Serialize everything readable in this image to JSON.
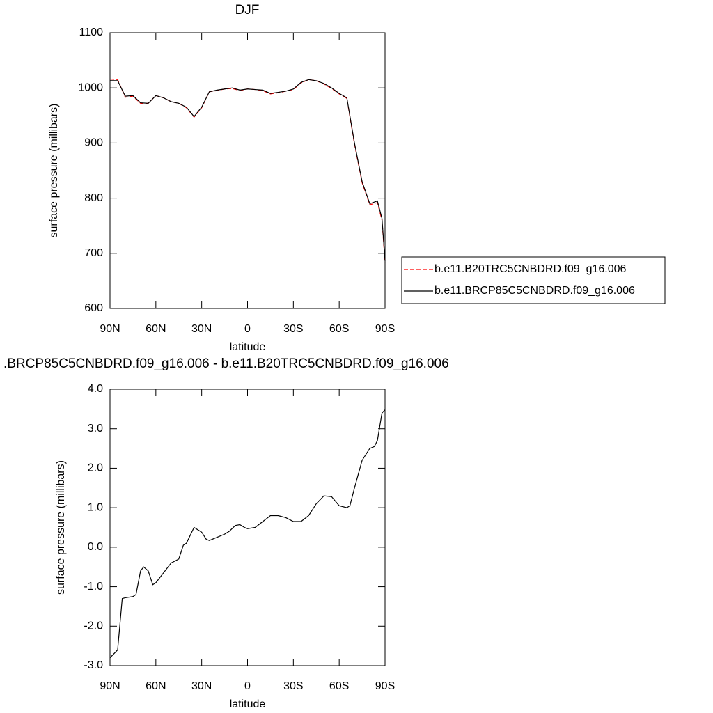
{
  "chart_data": [
    {
      "type": "line",
      "title": "DJF",
      "xlabel": "latitude",
      "ylabel": "surface pressure (millibars)",
      "x": [
        90,
        85,
        80,
        75,
        70,
        65,
        60,
        55,
        50,
        45,
        40,
        35,
        30,
        25,
        20,
        15,
        10,
        5,
        0,
        -5,
        -10,
        -15,
        -20,
        -25,
        -30,
        -35,
        -40,
        -45,
        -50,
        -55,
        -60,
        -65,
        -70,
        -75,
        -80,
        -85,
        -88,
        -90
      ],
      "series": [
        {
          "name": "b.e11.B20TRC5CNBDRD.f09_g16.006",
          "color": "#ff0000",
          "dash": true,
          "values": [
            1016,
            1015,
            983,
            985,
            972,
            972,
            986,
            982,
            975,
            972,
            964,
            947,
            964,
            993,
            995,
            998,
            999,
            995,
            998,
            997,
            995,
            989,
            991,
            994,
            997,
            1009,
            1015,
            1013,
            1007,
            999,
            989,
            981,
            898,
            828,
            788,
            792,
            760,
            683
          ]
        },
        {
          "name": "b.e11.BRCP85C5CNBDRD.f09_g16.006",
          "color": "#000000",
          "dash": false,
          "values": [
            1013,
            1013,
            985,
            986,
            973,
            972,
            986,
            982,
            975,
            972,
            965,
            948,
            965,
            993,
            996,
            998,
            1000,
            996,
            998,
            997,
            996,
            990,
            992,
            994,
            998,
            1010,
            1015,
            1013,
            1008,
            1000,
            990,
            982,
            900,
            830,
            790,
            795,
            763,
            686
          ]
        }
      ],
      "xlim": [
        90,
        -90
      ],
      "xticks": [
        {
          "value": 90,
          "label": "90N"
        },
        {
          "value": 60,
          "label": "60N"
        },
        {
          "value": 30,
          "label": "30N"
        },
        0,
        {
          "value": -30,
          "label": "30S"
        },
        {
          "value": -60,
          "label": "60S"
        },
        {
          "value": -90,
          "label": "90S"
        }
      ],
      "ylim": [
        600,
        1100
      ],
      "yticks": [
        600,
        700,
        800,
        900,
        1000,
        1100
      ]
    },
    {
      "type": "line",
      "title": ".BRCP85C5CNBDRD.f09_g16.006 - b.e11.B20TRC5CNBDRD.f09_g16.006",
      "xlabel": "latitude",
      "ylabel": "surface pressure (millibars)",
      "x": [
        90,
        85,
        82,
        80,
        75,
        73,
        70,
        68,
        65,
        62,
        60,
        55,
        50,
        45,
        42,
        40,
        35,
        30,
        27,
        25,
        20,
        15,
        12,
        8,
        5,
        2,
        0,
        -5,
        -10,
        -15,
        -20,
        -25,
        -30,
        -35,
        -40,
        -45,
        -50,
        -55,
        -60,
        -65,
        -67,
        -70,
        -75,
        -80,
        -83,
        -85,
        -88,
        -90
      ],
      "values": [
        -2.8,
        -2.6,
        -1.3,
        -1.28,
        -1.25,
        -1.2,
        -0.6,
        -0.5,
        -0.6,
        -0.95,
        -0.9,
        -0.65,
        -0.4,
        -0.3,
        0.05,
        0.1,
        0.5,
        0.38,
        0.2,
        0.17,
        0.25,
        0.33,
        0.4,
        0.55,
        0.57,
        0.5,
        0.47,
        0.5,
        0.65,
        0.8,
        0.8,
        0.75,
        0.65,
        0.65,
        0.8,
        1.1,
        1.3,
        1.28,
        1.05,
        1.0,
        1.05,
        1.5,
        2.2,
        2.5,
        2.55,
        2.7,
        3.4,
        3.48
      ],
      "color": "#000000",
      "xlim": [
        90,
        -90
      ],
      "xticks": [
        {
          "value": 90,
          "label": "90N"
        },
        {
          "value": 60,
          "label": "60N"
        },
        {
          "value": 30,
          "label": "30N"
        },
        0,
        {
          "value": -30,
          "label": "30S"
        },
        {
          "value": -60,
          "label": "60S"
        },
        {
          "value": -90,
          "label": "90S"
        }
      ],
      "ylim": [
        -3,
        4
      ],
      "yticks": [
        {
          "value": -3,
          "label": "-3.0"
        },
        {
          "value": -2,
          "label": "-2.0"
        },
        {
          "value": -1,
          "label": "-1.0"
        },
        {
          "value": 0,
          "label": "0.0"
        },
        {
          "value": 1,
          "label": "1.0"
        },
        {
          "value": 2,
          "label": "2.0"
        },
        {
          "value": 3,
          "label": "3.0"
        },
        {
          "value": 4,
          "label": "4.0"
        }
      ]
    }
  ]
}
